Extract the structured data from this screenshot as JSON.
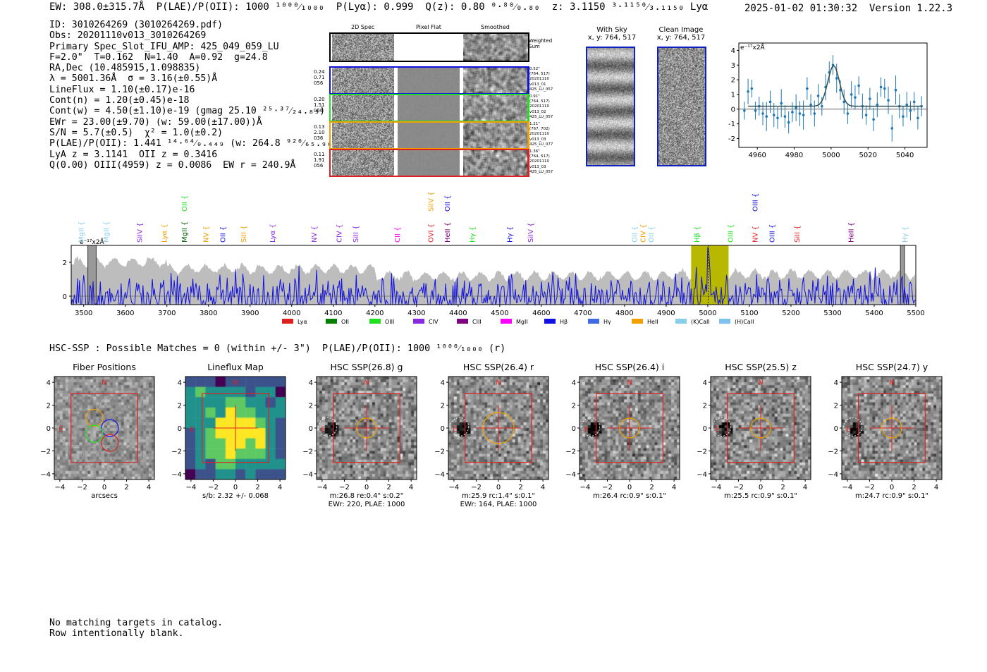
{
  "header": {
    "left": "EW: 308.0±315.7Å  P(LAE)/P(OII): 1000 ¹⁰⁰⁰⁄₁₀₀₀  P(Lyα): 0.999  Q(z): 0.80 ⁰·⁸⁰⁄₀.₈₀  z: 3.1150 ³·¹¹⁵⁰⁄₃.₁₁₅₀ Lyα",
    "right": "2025-01-02 01:30:32  Version 1.22.3"
  },
  "info_lines": [
    "ID: 3010264269 (3010264269.pdf)",
    "Obs: 20201110v013_3010264269",
    "Primary Spec_Slot_IFU_AMP: 425_049_059_LU",
    "F=2.0\"  T=0.162  N=1.40  A=0.92  g=24.8",
    "RA,Dec (10.485915,1.098835)",
    "λ = 5001.36Å  σ = 3.16(±0.55)Å",
    "LineFlux = 1.10(±0.17)e-16",
    "Cont(n) = 1.20(±0.45)e-18",
    "Cont(w) = 4.50(±1.10)e-19 (gmag 25.10 ²⁵·³⁷⁄₂₄.₈₃)",
    "EWr = 23.00(±9.70) (w: 59.00(±17.00))Å",
    "S/N = 5.7(±0.5)  χ² = 1.0(±0.2)",
    "P(LAE)/P(OII): 1.441 ¹⁴·⁶⁴⁄₀.₄₄₉ (w: 264.8 ⁹²⁰⁄₆₅.₉₆)",
    "LyA z = 3.1141  OII z = 0.3416",
    "Q(0.00) OIII(4959) z = 0.0086  EW r = 240.9Å"
  ],
  "cutouts": {
    "col_labels": [
      "2D Spec",
      "Pixel Flat",
      "Smoothed"
    ],
    "weighted_label": "Weighted\nSum",
    "rows": [
      {
        "left": "0.24\n0.71\n056",
        "right": "0.52\"\n(764, 517)\n20201110\nv013_01\n425_LU_057",
        "color": "#1010e0"
      },
      {
        "left": "0.20\n1.51\n056",
        "right": "0.91\"\n(764, 517)\n20201110\nv013_02\n425_LU_057",
        "color": "#20e020"
      },
      {
        "left": "0.13\n2.10\n036",
        "right": "1.21\"\n(767, 702)\n20201110\nv013_03\n425_LU_077",
        "color": "#f0a000"
      },
      {
        "left": "0.11\n1.91\n056",
        "right": "1.36\"\n(764, 517)\n20201110\nv013_03\n425_LU_057",
        "color": "#e02020"
      }
    ]
  },
  "sky": {
    "title": "With Sky\nx, y: 764, 517",
    "clean_title": "Clean Image\nx, y: 764, 517",
    "frame_color": "#1020c0"
  },
  "zoom_plot": {
    "unit_label": "e⁻¹⁷x2Å",
    "xticks": [
      "4960",
      "4980",
      "5000",
      "5020",
      "5040"
    ],
    "yticks": [
      "-2",
      "-1",
      "0",
      "1",
      "2",
      "3",
      "4"
    ],
    "xlim": [
      4950,
      5052
    ],
    "ylim": [
      -2.6,
      4.5
    ],
    "points": [
      [
        4953,
        -0.1
      ],
      [
        4955,
        1.2
      ],
      [
        4957,
        1.4
      ],
      [
        4959,
        -0.1
      ],
      [
        4961,
        0.2
      ],
      [
        4963,
        -0.3
      ],
      [
        4965,
        -0.5
      ],
      [
        4967,
        0.5
      ],
      [
        4969,
        -0.4
      ],
      [
        4971,
        -0.6
      ],
      [
        4973,
        0.4
      ],
      [
        4975,
        -0.5
      ],
      [
        4977,
        -0.9
      ],
      [
        4979,
        -0.2
      ],
      [
        4981,
        0.1
      ],
      [
        4983,
        -0.3
      ],
      [
        4985,
        -0.4
      ],
      [
        4987,
        1.4
      ],
      [
        4989,
        0.3
      ],
      [
        4991,
        -0.3
      ],
      [
        4993,
        0.9
      ],
      [
        4995,
        0.2
      ],
      [
        4997,
        1.5
      ],
      [
        4999,
        2.5
      ],
      [
        5001,
        3.0
      ],
      [
        5003,
        2.1
      ],
      [
        5005,
        1.3
      ],
      [
        5007,
        0.5
      ],
      [
        5009,
        -0.3
      ],
      [
        5011,
        1.0
      ],
      [
        5013,
        0.8
      ],
      [
        5015,
        1.6
      ],
      [
        5017,
        0.2
      ],
      [
        5019,
        -0.4
      ],
      [
        5021,
        0.7
      ],
      [
        5023,
        -0.7
      ],
      [
        5025,
        0.3
      ],
      [
        5027,
        1.5
      ],
      [
        5029,
        1.4
      ],
      [
        5031,
        0.6
      ],
      [
        5033,
        -1.3
      ],
      [
        5035,
        1.3
      ],
      [
        5037,
        0.2
      ],
      [
        5039,
        -0.5
      ],
      [
        5041,
        0.3
      ],
      [
        5043,
        -0.1
      ],
      [
        5045,
        0.5
      ],
      [
        5047,
        -0.6
      ],
      [
        5049,
        0.2
      ]
    ],
    "fit": {
      "center": 5001.36,
      "sigma": 3.16,
      "amp": 2.75,
      "base": 0.2
    }
  },
  "spectrum": {
    "unit_label": "e⁻¹⁷x2Å",
    "xlim": [
      3470,
      5500
    ],
    "ylim": [
      -0.5,
      3.0
    ],
    "xticks": [
      "3500",
      "3600",
      "3700",
      "3800",
      "3900",
      "4000",
      "4100",
      "4200",
      "4300",
      "4400",
      "4500",
      "4600",
      "4700",
      "4800",
      "4900",
      "5000",
      "5100",
      "5200",
      "5300",
      "5400",
      "5500"
    ],
    "yticks": [
      "0",
      "2"
    ],
    "highlight": [
      4960,
      5050
    ],
    "line_center": 5001.36,
    "lines": [
      {
        "label": "MgII",
        "wl": 3500,
        "color": "#87ceeb",
        "row": 1
      },
      {
        "label": "MgII",
        "wl": 3560,
        "color": "#87ceeb",
        "row": 1
      },
      {
        "label": "SiIV",
        "wl": 3640,
        "color": "#8a2be2",
        "row": 1
      },
      {
        "label": "Lyα",
        "wl": 3700,
        "color": "#f0a000",
        "row": 1
      },
      {
        "label": "MgII",
        "wl": 3748,
        "color": "#006000",
        "row": 1
      },
      {
        "label": "OII",
        "wl": 3748,
        "color": "#20e020",
        "row": 0
      },
      {
        "label": "NV",
        "wl": 3800,
        "color": "#f0a000",
        "row": 1
      },
      {
        "label": "OII",
        "wl": 3840,
        "color": "#1010e0",
        "row": 1
      },
      {
        "label": "SiII",
        "wl": 3890,
        "color": "#f0a000",
        "row": 1
      },
      {
        "label": "Lyα",
        "wl": 3960,
        "color": "#8a2be2",
        "row": 1
      },
      {
        "label": "NV",
        "wl": 4060,
        "color": "#8a2be2",
        "row": 1
      },
      {
        "label": "CIV",
        "wl": 4120,
        "color": "#8a2be2",
        "row": 1
      },
      {
        "label": "SiII",
        "wl": 4160,
        "color": "#8a2be2",
        "row": 1
      },
      {
        "label": "CII",
        "wl": 4260,
        "color": "#ff00ff",
        "row": 1
      },
      {
        "label": "OVI",
        "wl": 4340,
        "color": "#e02020",
        "row": 1
      },
      {
        "label": "SiIV",
        "wl": 4340,
        "color": "#f0a000",
        "row": 0
      },
      {
        "label": "HeII",
        "wl": 4380,
        "color": "#800080",
        "row": 1
      },
      {
        "label": "OII",
        "wl": 4380,
        "color": "#1010e0",
        "row": 0
      },
      {
        "label": "Hγ",
        "wl": 4440,
        "color": "#20e020",
        "row": 1
      },
      {
        "label": "Hγ",
        "wl": 4530,
        "color": "#1010e0",
        "row": 1
      },
      {
        "label": "SiIV",
        "wl": 4580,
        "color": "#8a2be2",
        "row": 1
      },
      {
        "label": "OII",
        "wl": 4830,
        "color": "#87ceeb",
        "row": 1
      },
      {
        "label": "CIV",
        "wl": 4850,
        "color": "#f0a000",
        "row": 1
      },
      {
        "label": "OII",
        "wl": 4870,
        "color": "#87ceeb",
        "row": 1
      },
      {
        "label": "Hβ",
        "wl": 4980,
        "color": "#20e020",
        "row": 1
      },
      {
        "label": "OIII",
        "wl": 5060,
        "color": "#20e020",
        "row": 1
      },
      {
        "label": "NV",
        "wl": 5120,
        "color": "#e02020",
        "row": 1
      },
      {
        "label": "OIII",
        "wl": 5120,
        "color": "#1010e0",
        "row": 0
      },
      {
        "label": "OIII",
        "wl": 5160,
        "color": "#1010e0",
        "row": 1
      },
      {
        "label": "SiII",
        "wl": 5220,
        "color": "#e02020",
        "row": 1
      },
      {
        "label": "HeII",
        "wl": 5350,
        "color": "#800080",
        "row": 1
      },
      {
        "label": "Hγ",
        "wl": 5480,
        "color": "#87ceeb",
        "row": 1
      }
    ],
    "legend": [
      {
        "label": "Lyα",
        "color": "#e02020"
      },
      {
        "label": "OII",
        "color": "#008000"
      },
      {
        "label": "OIII",
        "color": "#20e020"
      },
      {
        "label": "CIV",
        "color": "#8a2be2"
      },
      {
        "label": "CIII",
        "color": "#800080"
      },
      {
        "label": "MgII",
        "color": "#ff00ff"
      },
      {
        "label": "Hβ",
        "color": "#1010e0"
      },
      {
        "label": "Hγ",
        "color": "#4169e1"
      },
      {
        "label": "HeII",
        "color": "#f0a000"
      },
      {
        "label": "(K)CaII",
        "color": "#87ceeb"
      },
      {
        "label": "(H)CaII",
        "color": "#7ec0ee"
      }
    ]
  },
  "hsc": {
    "title": "HSC-SSP : Possible Matches = 0 (within +/- 3\")  P(LAE)/P(OII): 1000 ¹⁰⁰⁰⁄₁₀₀₀ (r)",
    "ticks": [
      "−4",
      "−2",
      "0",
      "2",
      "4"
    ],
    "north": "N",
    "east": "E",
    "panels": [
      {
        "title": "Fiber Positions",
        "type": "fiber",
        "caption1": "arcsecs",
        "caption2": ""
      },
      {
        "title": "Lineflux Map",
        "type": "flux",
        "caption1": "s/b: 2.32 +/- 0.068",
        "caption2": ""
      },
      {
        "title": "HSC SSP(26.8) g",
        "type": "img",
        "caption1": "m:26.8  re:0.4\"  s:0.2\"",
        "caption2": "EWr: 220, PLAE: 1000"
      },
      {
        "title": "HSC SSP(26.4) r",
        "type": "img",
        "caption1": "m:25.9 rc:1.4\"  s:0.1\"",
        "caption2": "EWr: 164, PLAE: 1000"
      },
      {
        "title": "HSC SSP(26.4) i",
        "type": "img",
        "caption1": "m:26.4 rc:0.9\"  s:0.1\"",
        "caption2": ""
      },
      {
        "title": "HSC SSP(25.5) z",
        "type": "img",
        "caption1": "m:25.5 rc:0.9\"  s:0.1\"",
        "caption2": ""
      },
      {
        "title": "HSC SSP(24.7) y",
        "type": "img",
        "caption1": "m:24.7 rc:0.9\"  s:0.1\"",
        "caption2": ""
      }
    ]
  },
  "footer": [
    "No matching targets in catalog.",
    "Row intentionally blank."
  ]
}
